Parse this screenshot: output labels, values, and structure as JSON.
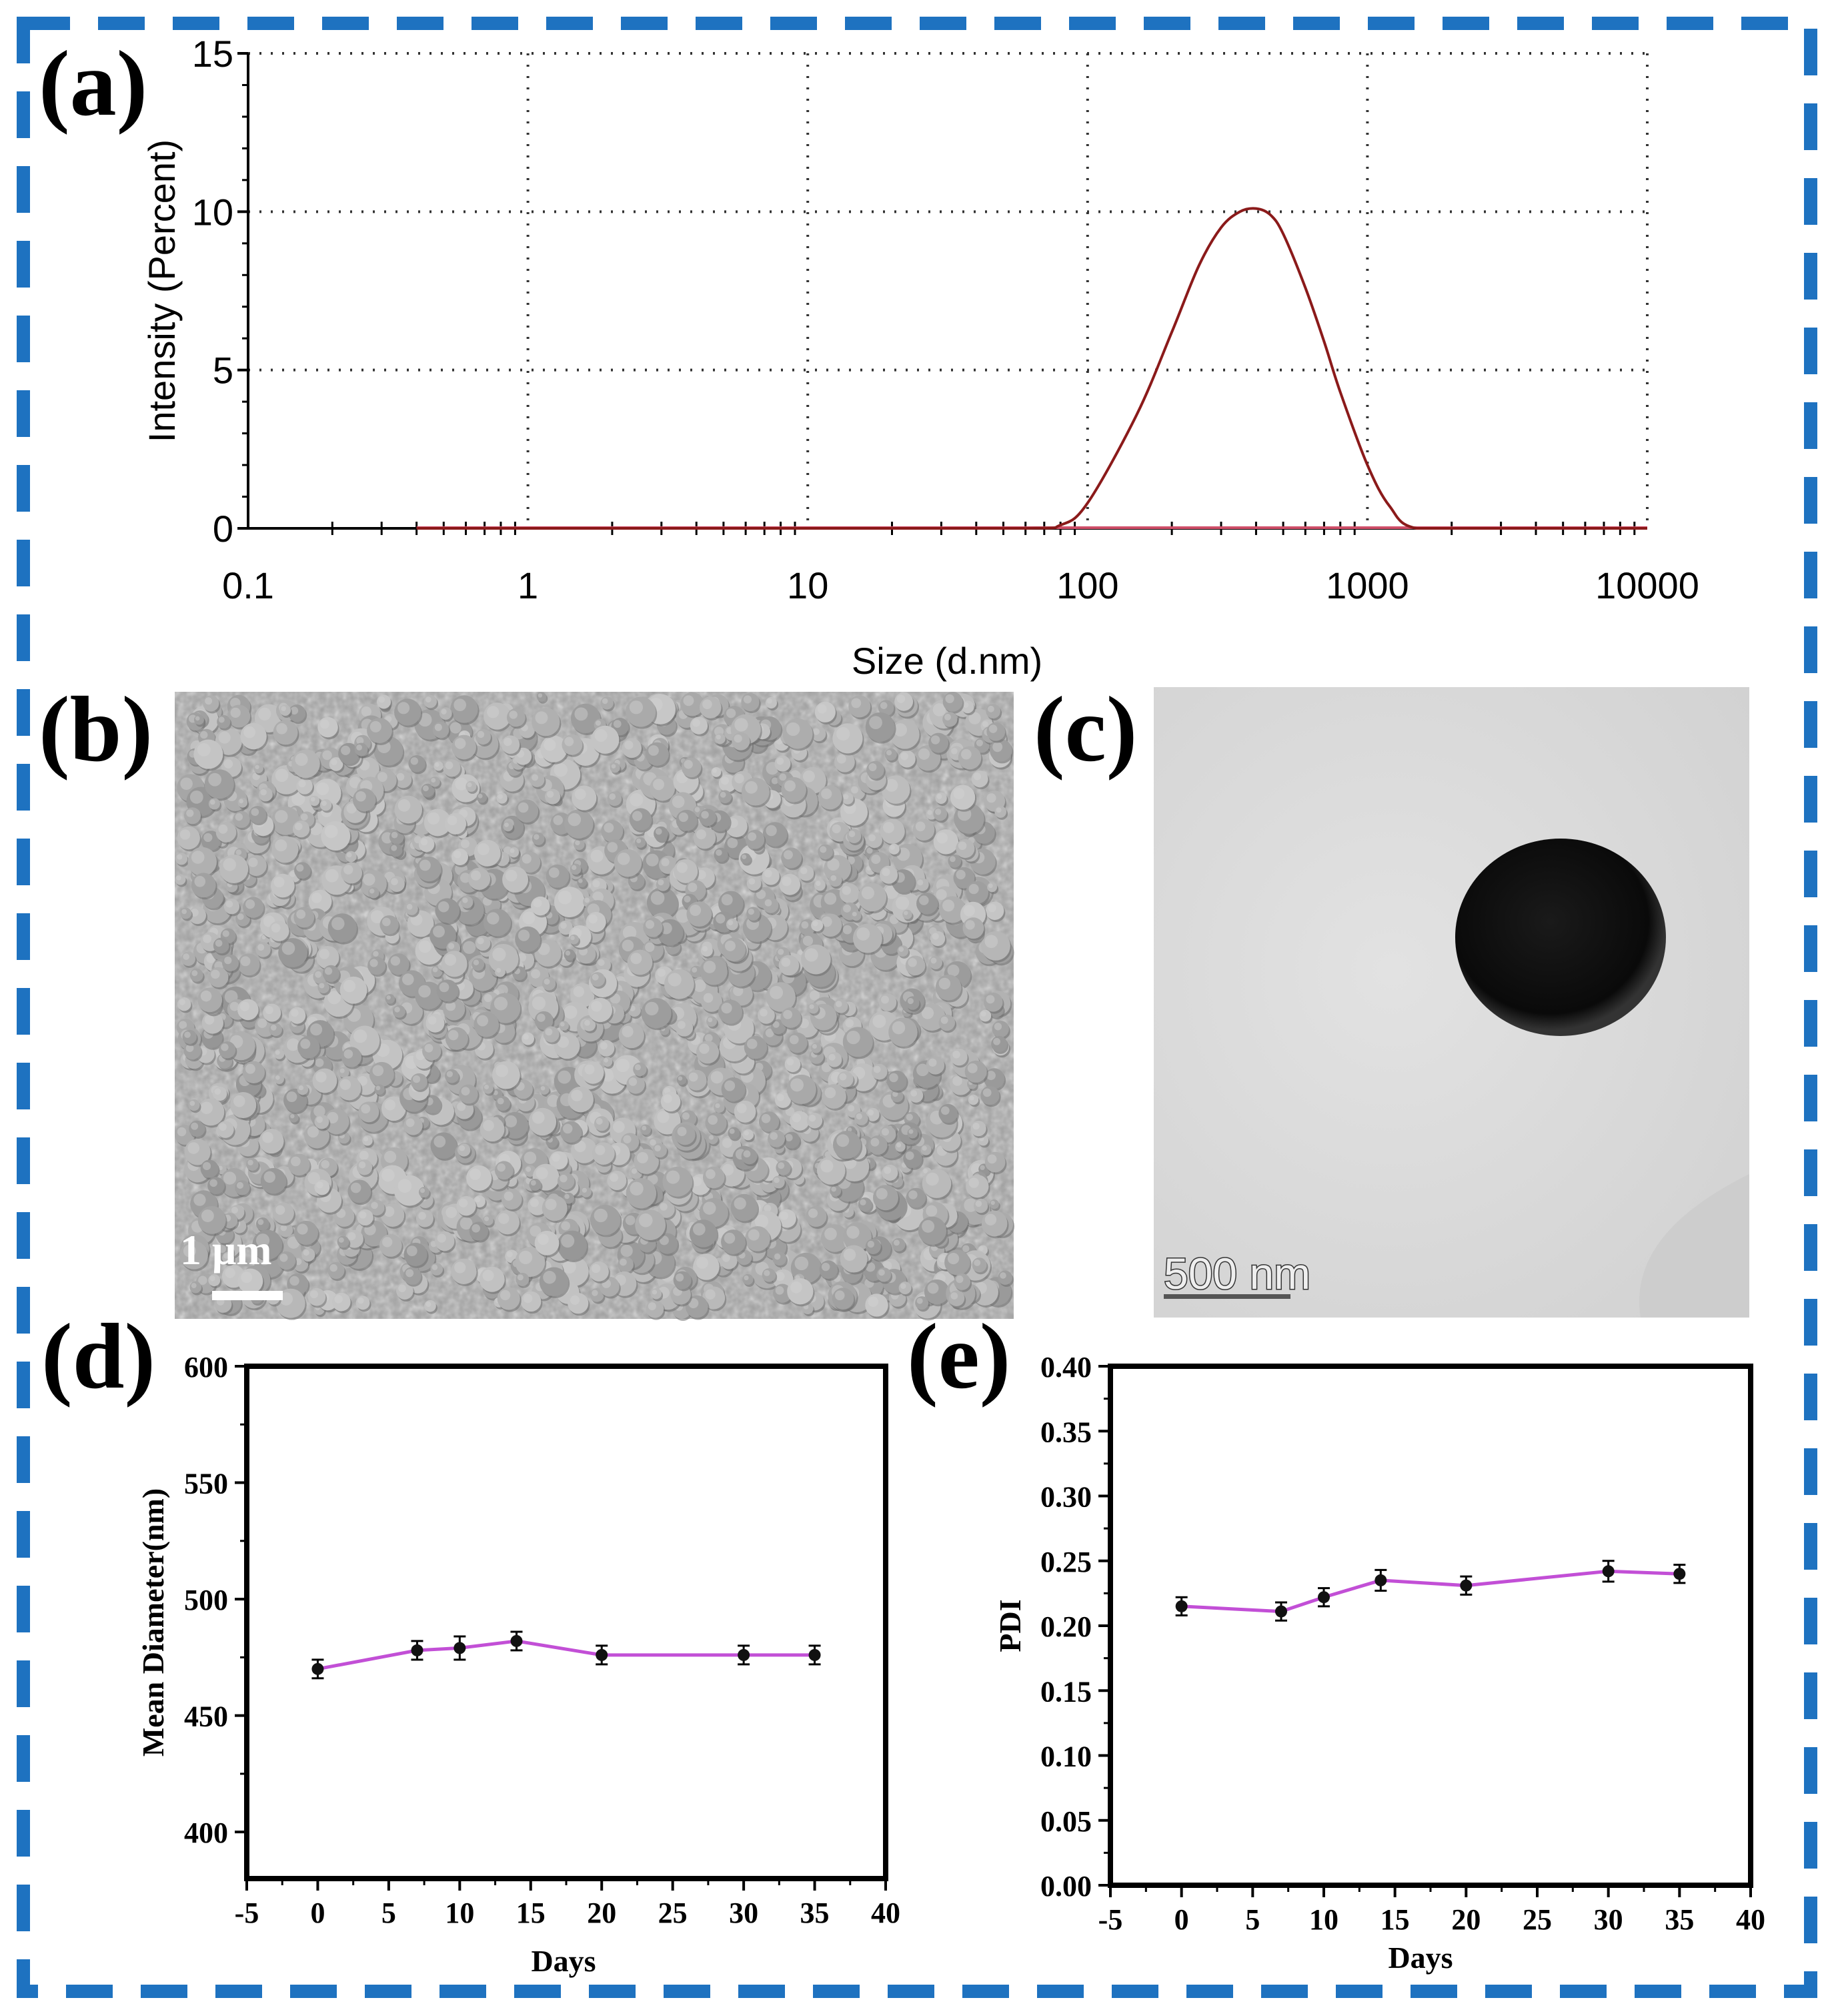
{
  "panels": {
    "a": "(a)",
    "b": "(b)",
    "c": "(c)",
    "d": "(d)",
    "e": "(e)"
  },
  "colors": {
    "frame": "#1e72c0",
    "dls_curve": "#8b1a1a",
    "dls_baseline": "#d0506a",
    "stability_line": "#c24fd6",
    "sem_bg": "#a9a9a9",
    "tem_bg": "#dcdcdc"
  },
  "images": {
    "sem_scale_label": "1 μm",
    "tem_scale_label": "500 nm"
  },
  "chart_data": [
    {
      "id": "a",
      "type": "line",
      "xlabel": "Size (d.nm)",
      "ylabel": "Intensity (Percent)",
      "xscale": "log",
      "xlim": [
        0.1,
        10000
      ],
      "ylim": [
        0,
        15
      ],
      "xticks": [
        "0.1",
        "1",
        "10",
        "100",
        "1000",
        "10000"
      ],
      "yticks": [
        "0",
        "5",
        "10",
        "15"
      ],
      "grid": true,
      "series": [
        {
          "x": [
            0.4,
            1,
            10,
            60,
            80,
            100,
            150,
            200,
            250,
            300,
            350,
            400,
            450,
            500,
            600,
            700,
            800,
            1000,
            1200,
            1500,
            3000,
            10000
          ],
          "y": [
            0,
            0,
            0,
            0,
            0.1,
            0.8,
            3.6,
            6.2,
            8.3,
            9.5,
            10.0,
            10.1,
            9.9,
            9.3,
            7.6,
            5.9,
            4.3,
            2.0,
            0.7,
            0,
            0,
            0
          ]
        }
      ]
    },
    {
      "id": "d",
      "type": "line",
      "xlabel": "Days",
      "ylabel": "Mean Diameter(nm)",
      "xlim": [
        -5,
        40
      ],
      "ylim": [
        380,
        600
      ],
      "xticks": [
        "-5",
        "0",
        "5",
        "10",
        "15",
        "20",
        "25",
        "30",
        "35",
        "40"
      ],
      "yticks": [
        "400",
        "450",
        "500",
        "550",
        "600"
      ],
      "grid": false,
      "series": [
        {
          "x": [
            0,
            7,
            10,
            14,
            20,
            30,
            35
          ],
          "y": [
            470,
            478,
            479,
            482,
            476,
            476,
            476
          ],
          "err": [
            4,
            4,
            5,
            4,
            4,
            4,
            4
          ]
        }
      ]
    },
    {
      "id": "e",
      "type": "line",
      "xlabel": "Days",
      "ylabel": "PDI",
      "xlim": [
        -5,
        40
      ],
      "ylim": [
        0,
        0.4
      ],
      "xticks": [
        "-5",
        "0",
        "5",
        "10",
        "15",
        "20",
        "25",
        "30",
        "35",
        "40"
      ],
      "yticks": [
        "0.00",
        "0.05",
        "0.10",
        "0.15",
        "0.20",
        "0.25",
        "0.30",
        "0.35",
        "0.40"
      ],
      "grid": false,
      "series": [
        {
          "x": [
            0,
            7,
            10,
            14,
            20,
            30,
            35
          ],
          "y": [
            0.215,
            0.211,
            0.222,
            0.235,
            0.231,
            0.242,
            0.24
          ],
          "err": [
            0.007,
            0.007,
            0.007,
            0.008,
            0.007,
            0.008,
            0.007
          ]
        }
      ]
    }
  ]
}
